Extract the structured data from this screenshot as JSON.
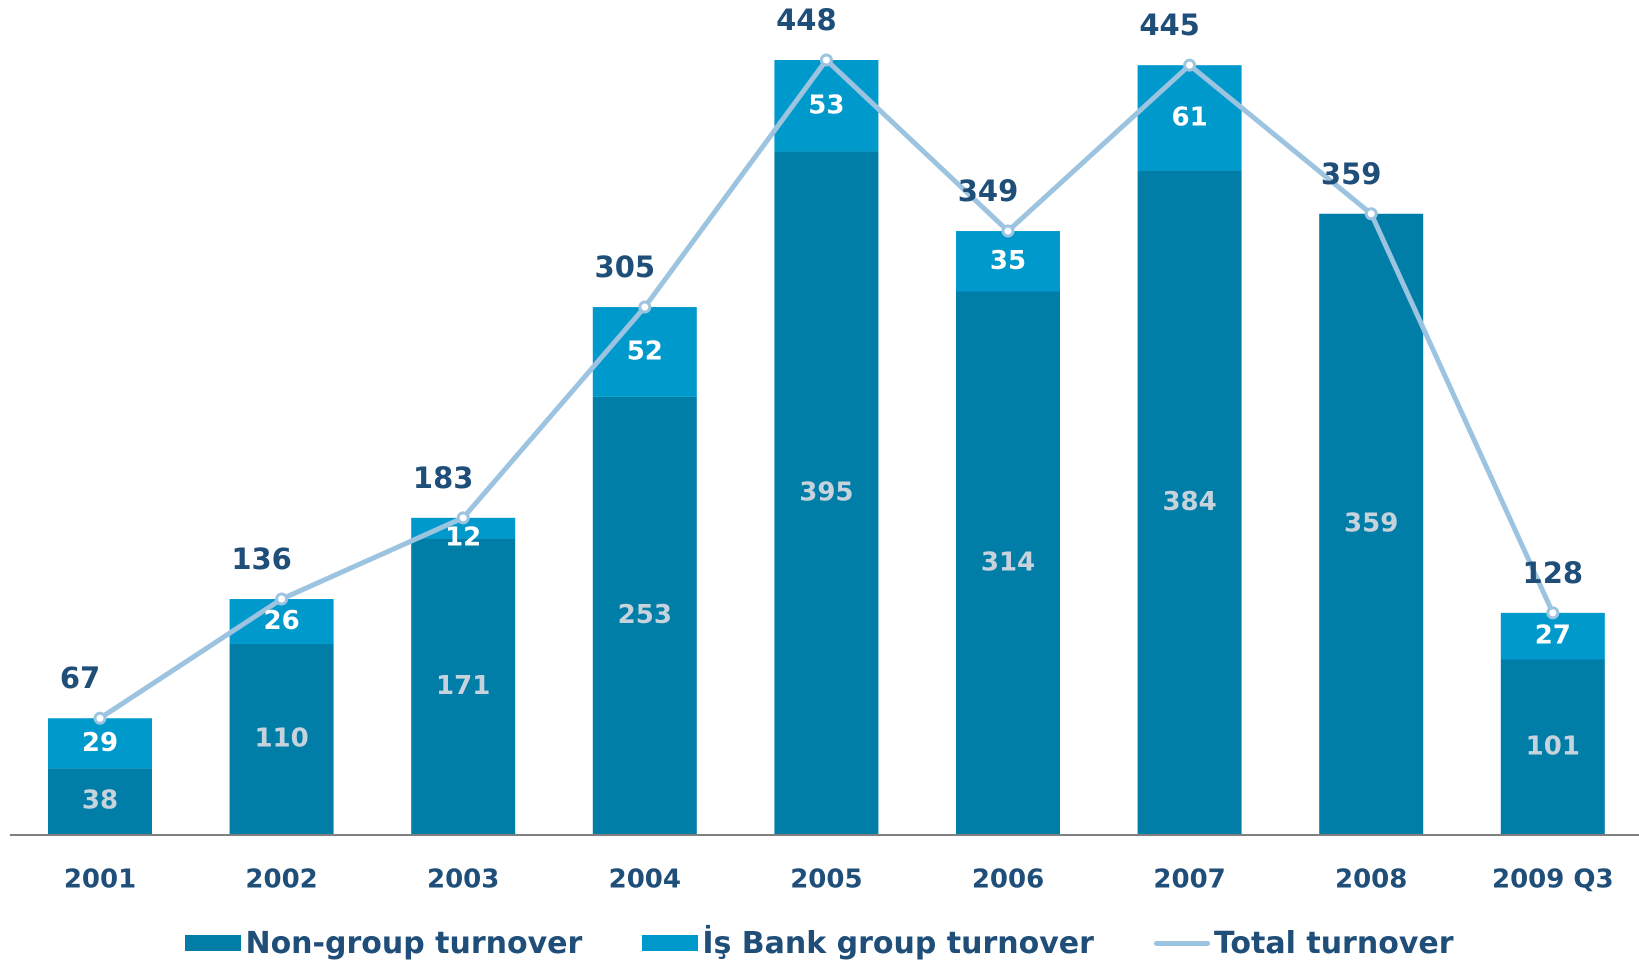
{
  "chart_data": {
    "type": "bar",
    "stacked": true,
    "categories": [
      "2001",
      "2002",
      "2003",
      "2004",
      "2005",
      "2006",
      "2007",
      "2008",
      "2009 Q3"
    ],
    "series": [
      {
        "name": "Non-group turnover",
        "values": [
          38,
          110,
          171,
          253,
          395,
          314,
          384,
          359,
          101
        ]
      },
      {
        "name": "İş Bank group turnover",
        "values": [
          29,
          26,
          12,
          52,
          53,
          35,
          61,
          null,
          27
        ]
      }
    ],
    "line_series": {
      "name": "Total turnover",
      "values": [
        67,
        136,
        183,
        305,
        448,
        349,
        445,
        359,
        128
      ]
    },
    "title": "",
    "xlabel": "",
    "ylabel": "",
    "ylim": [
      0,
      480
    ],
    "grid": false,
    "legend_position": "bottom",
    "colors": {
      "non_group": "#007ea8",
      "bank_group": "#0099cc",
      "total_line": "#9cc3df",
      "total_label": "#1f4e79",
      "bar_label": "#c7d3dc",
      "bank_label": "#ffffff",
      "axis": "#808080",
      "tick_label": "#1f4e79"
    }
  }
}
